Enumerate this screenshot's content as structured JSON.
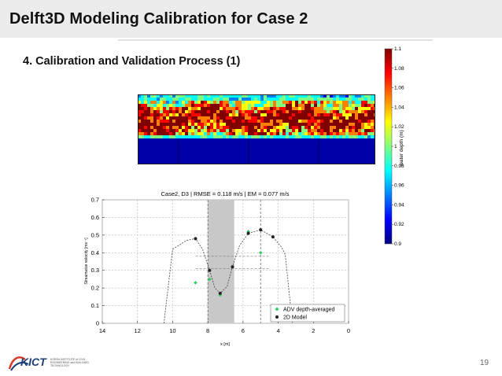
{
  "slide": {
    "title": "Delft3D Modeling Calibration for Case 2",
    "subtitle": "4. Calibration and Validation Process (1)",
    "page_number": "19",
    "logo_text": "KICT",
    "logo_subtext": "KOREA INSTITUTE of CIVIL ENGINEERING and BUILDING TECHNOLOGY"
  },
  "colorbar": {
    "label": "water depth (m)",
    "ticks": [
      "1.1",
      "1.08",
      "1.06",
      "1.04",
      "1.02",
      "1",
      "0.98",
      "0.96",
      "0.94",
      "0.92",
      "0.9"
    ],
    "min": 0.9,
    "max": 1.1,
    "colors": [
      "#00007f",
      "#0000ff",
      "#007fff",
      "#00ffff",
      "#7fff7f",
      "#ffff00",
      "#ff7f00",
      "#ff0000",
      "#7f0000"
    ]
  },
  "chart_data": {
    "type": "scatter",
    "title": "Case2,  D3 | RMSE = 0.118 m/s | EM = 0.077 m/s",
    "xlabel": "x [m]",
    "ylabel": "Streamwise velocity [ms⁻¹]",
    "xlim": [
      14,
      0
    ],
    "ylim": [
      0,
      0.7
    ],
    "x_ticks": [
      "14",
      "12",
      "10",
      "8",
      "6",
      "4",
      "2",
      "0"
    ],
    "y_ticks": [
      "0",
      "0.1",
      "0.2",
      "0.3",
      "0.4",
      "0.5",
      "0.6",
      "0.7"
    ],
    "grid": true,
    "legend_position": "bottom-right",
    "series": [
      {
        "name": "ADV depth-averaged",
        "color": "#33cc66",
        "marker": "diamond",
        "points": [
          [
            8.7,
            0.23
          ],
          [
            7.9,
            0.25
          ],
          [
            7.3,
            0.16
          ],
          [
            5.7,
            0.52
          ],
          [
            5.0,
            0.4
          ]
        ]
      },
      {
        "name": "2D Model",
        "color": "#222222",
        "marker": "circle",
        "points": [
          [
            8.7,
            0.48
          ],
          [
            7.9,
            0.3
          ],
          [
            7.3,
            0.17
          ],
          [
            6.6,
            0.32
          ],
          [
            5.7,
            0.51
          ],
          [
            5.0,
            0.53
          ],
          [
            4.3,
            0.49
          ]
        ]
      }
    ],
    "model_profile": [
      [
        10.0,
        0.42
      ],
      [
        9.2,
        0.47
      ],
      [
        8.7,
        0.48
      ],
      [
        8.3,
        0.42
      ],
      [
        7.9,
        0.3
      ],
      [
        7.6,
        0.2
      ],
      [
        7.3,
        0.17
      ],
      [
        6.9,
        0.21
      ],
      [
        6.6,
        0.32
      ],
      [
        6.2,
        0.44
      ],
      [
        5.7,
        0.51
      ],
      [
        5.0,
        0.53
      ],
      [
        4.3,
        0.49
      ],
      [
        3.8,
        0.43
      ],
      [
        3.6,
        0.39
      ],
      [
        3.2,
        0.0
      ]
    ],
    "model_profile_left": [
      [
        10.5,
        0.0
      ],
      [
        10.0,
        0.42
      ]
    ],
    "shaded_region": [
      8.0,
      6.5
    ],
    "vertical_lines": [
      8.0,
      5.0
    ],
    "reference_lines": [
      0.38,
      0.31
    ]
  }
}
